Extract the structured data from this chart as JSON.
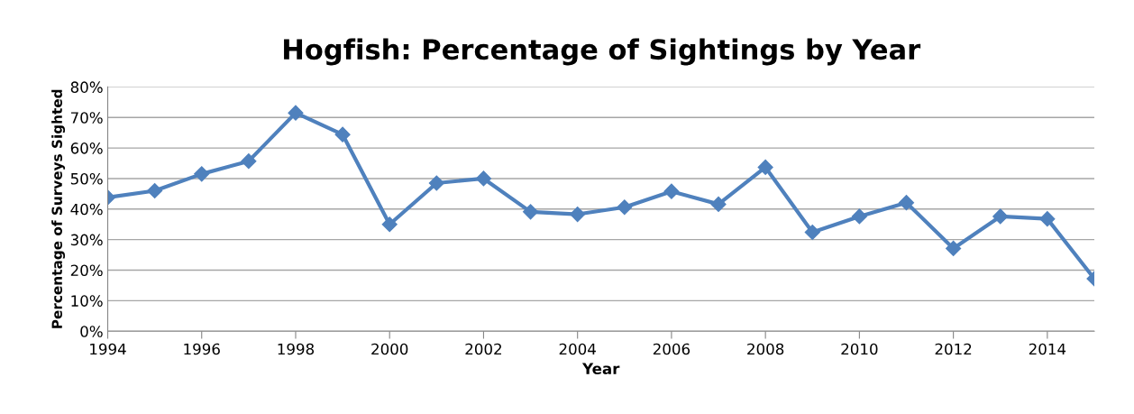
{
  "chart_data": {
    "type": "line",
    "title": "Hogfish: Percentage of Sightings by Year",
    "xlabel": "Year",
    "ylabel": "Percentage of Surveys Sighted",
    "x": [
      1994,
      1995,
      1996,
      1997,
      1998,
      1999,
      2000,
      2001,
      2002,
      2003,
      2004,
      2005,
      2006,
      2007,
      2008,
      2009,
      2010,
      2011,
      2012,
      2013,
      2014,
      2015
    ],
    "series": [
      {
        "color": "#4f81bd",
        "values": [
          43.8,
          46.0,
          51.5,
          55.7,
          71.5,
          64.4,
          35.0,
          48.5,
          50.0,
          39.1,
          38.3,
          40.6,
          45.8,
          41.6,
          53.7,
          32.4,
          37.6,
          42.1,
          27.1,
          37.6,
          36.8,
          17.2
        ]
      }
    ],
    "xlim": [
      1994,
      2015
    ],
    "xticks": [
      1994,
      1996,
      1998,
      2000,
      2002,
      2004,
      2006,
      2008,
      2010,
      2012,
      2014
    ],
    "ylim": [
      0,
      80
    ],
    "yticks": [
      {
        "value": 0,
        "label": "0%"
      },
      {
        "value": 10,
        "label": "10%"
      },
      {
        "value": 20,
        "label": "20%"
      },
      {
        "value": 30,
        "label": "30%"
      },
      {
        "value": 40,
        "label": "40%"
      },
      {
        "value": 50,
        "label": "50%"
      },
      {
        "value": 60,
        "label": "60%"
      },
      {
        "value": 70,
        "label": "70%"
      },
      {
        "value": 80,
        "label": "80%"
      }
    ],
    "grid": "y",
    "marker": "diamond",
    "line_style": "solid"
  }
}
